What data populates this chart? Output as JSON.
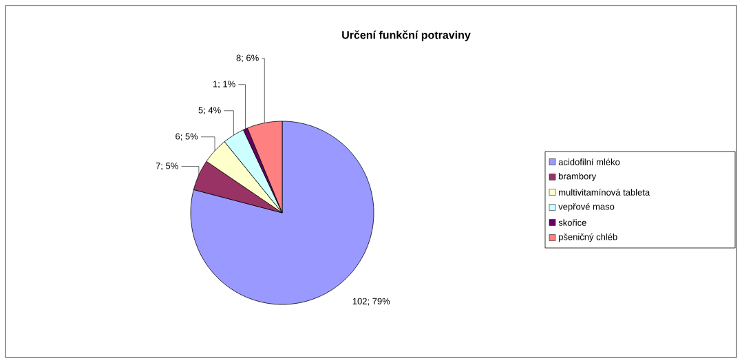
{
  "chart_data": {
    "type": "pie",
    "title": "Určení funkční potraviny",
    "categories": [
      "acidofilní mléko",
      "brambory",
      "multivitamínová tableta",
      "vepřové maso",
      "skořice",
      "pšeničný chléb"
    ],
    "values": [
      102,
      7,
      6,
      5,
      1,
      8
    ],
    "colors": [
      "#9999ff",
      "#993366",
      "#ffffcc",
      "#ccffff",
      "#660066",
      "#ff8080"
    ],
    "value_labels": [
      "102; 79%",
      "7; 5%",
      "6; 5%",
      "5; 4%",
      "1; 1%",
      "8; 6%"
    ],
    "legend": "right"
  }
}
